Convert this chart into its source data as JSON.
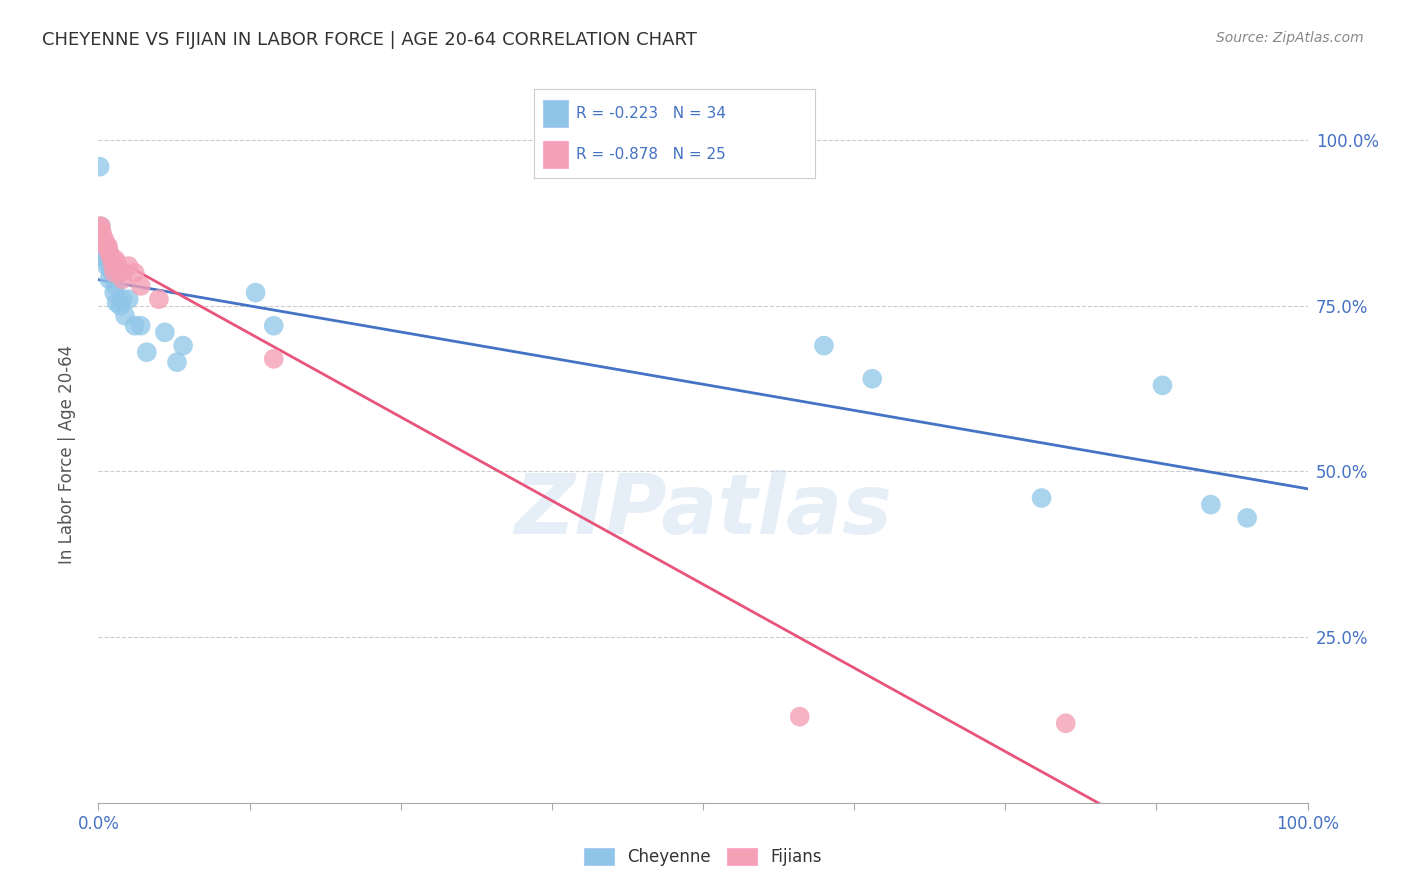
{
  "title": "CHEYENNE VS FIJIAN IN LABOR FORCE | AGE 20-64 CORRELATION CHART",
  "source": "Source: ZipAtlas.com",
  "ylabel": "In Labor Force | Age 20-64",
  "watermark": "ZIPatlas",
  "cheyenne_R": -0.223,
  "cheyenne_N": 34,
  "fijian_R": -0.878,
  "fijian_N": 25,
  "cheyenne_color": "#8EC5E8",
  "fijian_color": "#F4A0B5",
  "cheyenne_line_color": "#4472C4",
  "fijian_line_color": "#E8547A",
  "cheyenne_x": [
    0.001,
    0.002,
    0.003,
    0.004,
    0.005,
    0.006,
    0.007,
    0.008,
    0.009,
    0.01,
    0.011,
    0.012,
    0.013,
    0.014,
    0.015,
    0.016,
    0.018,
    0.02,
    0.022,
    0.025,
    0.03,
    0.035,
    0.04,
    0.055,
    0.065,
    0.07,
    0.13,
    0.145,
    0.6,
    0.64,
    0.78,
    0.88,
    0.92,
    0.95
  ],
  "cheyenne_y": [
    0.96,
    0.87,
    0.835,
    0.825,
    0.84,
    0.82,
    0.81,
    0.835,
    0.79,
    0.805,
    0.81,
    0.8,
    0.77,
    0.78,
    0.755,
    0.8,
    0.75,
    0.76,
    0.735,
    0.76,
    0.72,
    0.72,
    0.68,
    0.71,
    0.665,
    0.69,
    0.77,
    0.72,
    0.69,
    0.64,
    0.46,
    0.63,
    0.45,
    0.43
  ],
  "fijian_x": [
    0.001,
    0.002,
    0.003,
    0.004,
    0.005,
    0.006,
    0.007,
    0.008,
    0.009,
    0.01,
    0.011,
    0.012,
    0.013,
    0.014,
    0.015,
    0.016,
    0.018,
    0.02,
    0.025,
    0.03,
    0.035,
    0.05,
    0.145,
    0.58,
    0.8
  ],
  "fijian_y": [
    0.87,
    0.87,
    0.86,
    0.85,
    0.85,
    0.84,
    0.84,
    0.84,
    0.83,
    0.825,
    0.82,
    0.81,
    0.8,
    0.82,
    0.815,
    0.81,
    0.8,
    0.79,
    0.81,
    0.8,
    0.78,
    0.76,
    0.67,
    0.13,
    0.12
  ],
  "xlim": [
    0.0,
    1.0
  ],
  "ylim": [
    0.0,
    1.05
  ],
  "background_color": "#FFFFFF",
  "grid_color": "#CCCCCC",
  "tick_color": "#4472C4",
  "title_color": "#333333",
  "source_color": "#888888",
  "axis_label_color": "#555555"
}
